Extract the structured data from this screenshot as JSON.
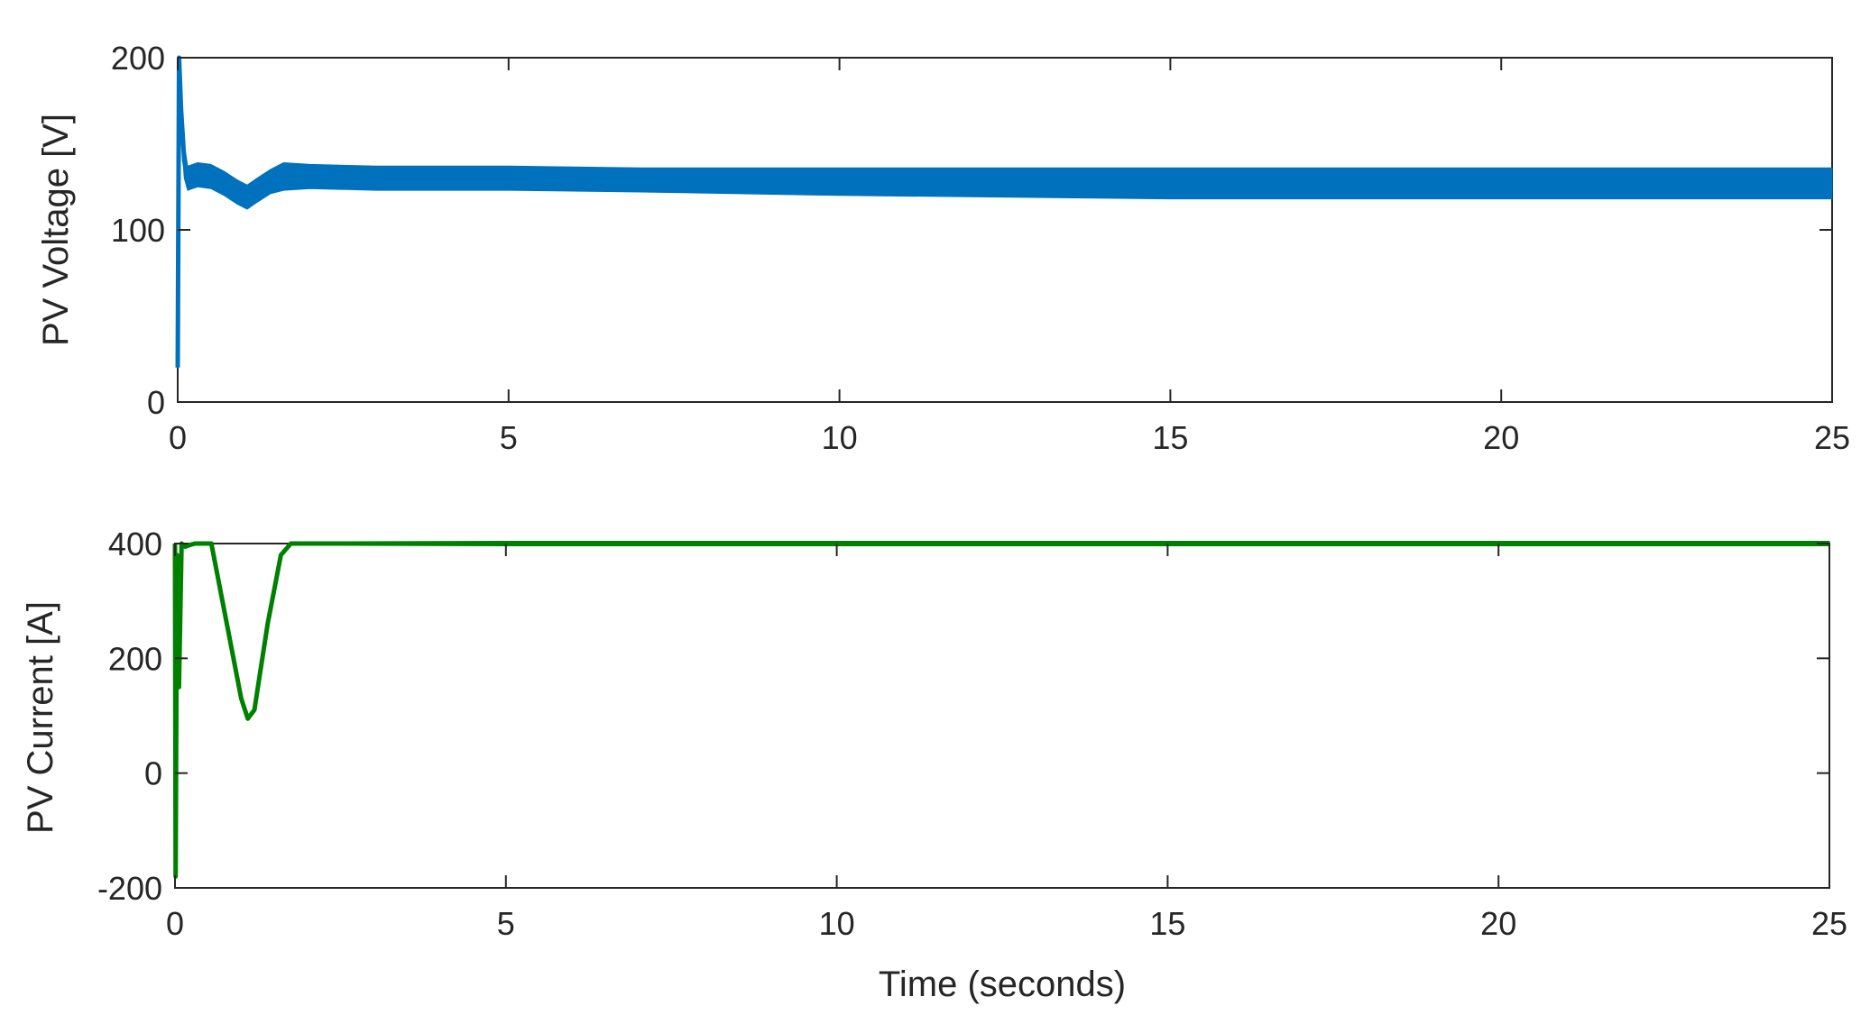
{
  "chart_data": [
    {
      "type": "line",
      "xlabel": "",
      "ylabel": "PV Voltage [V]",
      "xlim": [
        0,
        25
      ],
      "ylim": [
        0,
        200
      ],
      "x_ticks": [
        "0",
        "5",
        "10",
        "15",
        "20",
        "25"
      ],
      "y_ticks": [
        "0",
        "100",
        "200"
      ],
      "grid": false,
      "color": "#0072BD",
      "series": [
        {
          "x": [
            0,
            0.02,
            0.05,
            0.1,
            0.15,
            0.3,
            0.5,
            0.7,
            0.9,
            1.05,
            1.2,
            1.4,
            1.6,
            2.0,
            3.0,
            5.0,
            7.0,
            10.0,
            15.0,
            20.0,
            25.0
          ],
          "y": [
            20,
            200,
            170,
            140,
            130,
            132,
            131,
            127,
            122,
            119,
            123,
            128,
            131,
            131,
            130,
            130,
            129,
            128,
            127,
            127,
            127
          ],
          "band": [
            0,
            0,
            30,
            20,
            14,
            14,
            14,
            14,
            14,
            14,
            14,
            14,
            16,
            14,
            14,
            14,
            14,
            16,
            18,
            18,
            18
          ]
        }
      ]
    },
    {
      "type": "line",
      "xlabel": "Time (seconds)",
      "ylabel": "PV Current [A]",
      "xlim": [
        0,
        25
      ],
      "ylim": [
        -200,
        400
      ],
      "x_ticks": [
        "0",
        "5",
        "10",
        "15",
        "20",
        "25"
      ],
      "y_ticks": [
        "-200",
        "0",
        "200",
        "400"
      ],
      "grid": false,
      "color": "#008000",
      "series": [
        {
          "x": [
            0,
            0.01,
            0.03,
            0.06,
            0.1,
            0.15,
            0.3,
            0.55,
            0.8,
            1.0,
            1.1,
            1.2,
            1.4,
            1.6,
            1.75,
            2.0,
            5.0,
            10.0,
            15.0,
            20.0,
            25.0
          ],
          "y": [
            400,
            -180,
            380,
            150,
            400,
            395,
            400,
            400,
            250,
            130,
            95,
            110,
            260,
            380,
            400,
            400,
            400,
            400,
            400,
            400,
            400
          ],
          "band": [
            0,
            0,
            0,
            0,
            0,
            8,
            4,
            6,
            6,
            6,
            6,
            6,
            6,
            6,
            6,
            6,
            8,
            8,
            8,
            8,
            8
          ]
        }
      ]
    }
  ]
}
